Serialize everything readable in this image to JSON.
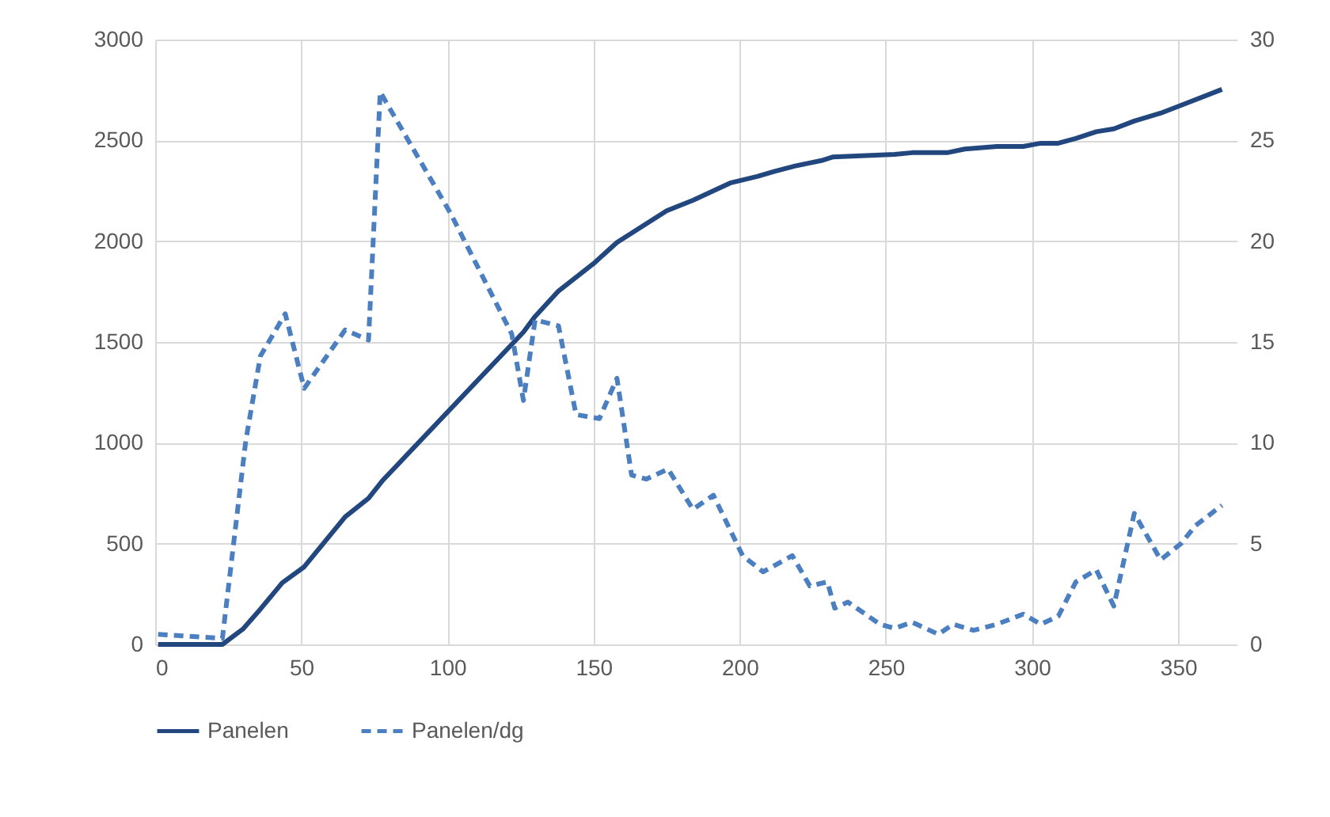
{
  "chart_data": {
    "type": "line",
    "xlim": [
      0,
      370
    ],
    "xticks": [
      0,
      50,
      100,
      150,
      200,
      250,
      300,
      350
    ],
    "ylim": [
      0,
      3000
    ],
    "yticks": [
      0,
      500,
      1000,
      1500,
      2000,
      2500,
      3000
    ],
    "y2lim": [
      0,
      30
    ],
    "y2ticks": [
      0,
      5,
      10,
      15,
      20,
      25,
      30
    ],
    "grid": true,
    "legend": "bottom",
    "series": [
      {
        "name": "Panelen",
        "color": "#22477e",
        "line_style": "solid",
        "x": [
          1,
          23,
          30,
          36,
          43.5,
          51,
          65,
          73,
          78,
          126,
          130,
          138,
          150,
          158,
          175,
          184,
          197,
          206,
          212,
          219,
          228,
          232,
          253,
          259,
          271,
          277,
          288,
          297,
          303,
          309,
          315,
          322,
          328,
          335,
          344,
          351,
          365
        ],
        "values": [
          0,
          0,
          76,
          175,
          306,
          385,
          633,
          725,
          816,
          1549,
          1627,
          1753,
          1889,
          1994,
          2151,
          2203,
          2290,
          2321,
          2347,
          2373,
          2400,
          2418,
          2431,
          2439,
          2439,
          2457,
          2470,
          2470,
          2486,
          2486,
          2510,
          2543,
          2557,
          2596,
          2635,
          2674,
          2753
        ]
      },
      {
        "name": "Panelen/dg",
        "color": "#4b7fc0",
        "line_style": "dashed",
        "axis": "y2",
        "x": [
          1,
          23,
          31,
          36,
          44.5,
          51,
          65,
          73,
          77,
          101,
          122,
          126,
          130,
          138,
          144,
          152,
          158,
          163,
          168,
          175.5,
          184,
          191,
          201,
          208,
          218,
          224,
          230,
          232.5,
          237,
          248,
          253,
          259,
          268,
          273,
          280,
          288,
          297,
          303,
          309,
          315,
          322,
          328,
          335,
          344,
          351,
          356,
          365
        ],
        "values": [
          0.5,
          0.3,
          10.1,
          14.3,
          16.4,
          12.7,
          15.6,
          15.1,
          27.4,
          21.4,
          15.4,
          12.1,
          16.1,
          15.8,
          11.4,
          11.2,
          13.2,
          8.4,
          8.2,
          8.7,
          6.7,
          7.4,
          4.4,
          3.6,
          4.4,
          2.9,
          3.1,
          1.8,
          2.1,
          1.0,
          0.8,
          1.1,
          0.5,
          1.0,
          0.7,
          1.0,
          1.5,
          1.0,
          1.4,
          3.1,
          3.7,
          1.9,
          6.5,
          4.2,
          5.0,
          5.9,
          6.9
        ]
      }
    ]
  }
}
